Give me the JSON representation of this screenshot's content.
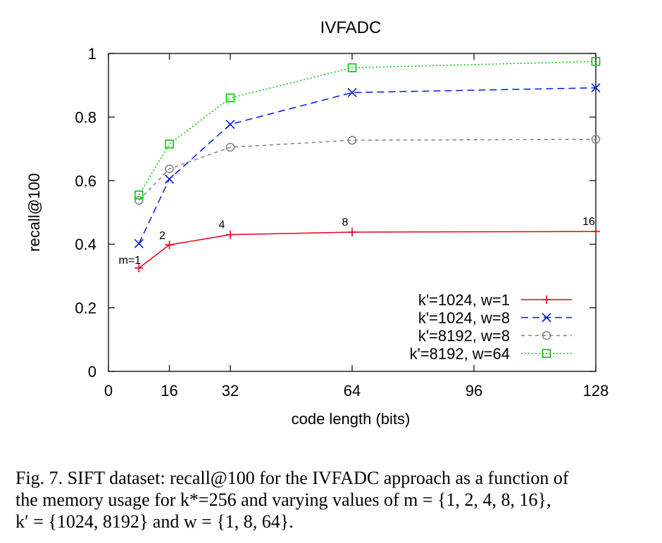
{
  "chart_data": {
    "type": "line",
    "title": "IVFADC",
    "xlabel": "code length (bits)",
    "ylabel": "recall@100",
    "xlim": [
      0,
      128
    ],
    "ylim": [
      0,
      1
    ],
    "xticks": [
      0,
      16,
      32,
      64,
      96,
      128
    ],
    "yticks": [
      0,
      0.2,
      0.4,
      0.6,
      0.8,
      1
    ],
    "ytick_labels": [
      "0",
      "0.2",
      "0.4",
      "0.6",
      "0.8",
      "1"
    ],
    "grid": false,
    "legend_position": "bottom-right",
    "series": [
      {
        "name": "k'=1024, w=1",
        "color": "#e8001c",
        "marker": "plus",
        "dash": "solid",
        "x": [
          8,
          16,
          32,
          64,
          128
        ],
        "y": [
          0.325,
          0.398,
          0.43,
          0.438,
          0.44
        ]
      },
      {
        "name": "k'=1024, w=8",
        "color": "#0019e8",
        "marker": "x",
        "dash": "dashed",
        "x": [
          8,
          16,
          32,
          64,
          128
        ],
        "y": [
          0.402,
          0.605,
          0.777,
          0.877,
          0.892
        ]
      },
      {
        "name": "k'=8192, w=8",
        "color": "#808080",
        "marker": "circle",
        "dash": "dashed-fine",
        "x": [
          8,
          16,
          32,
          64,
          128
        ],
        "y": [
          0.538,
          0.637,
          0.705,
          0.727,
          0.73
        ]
      },
      {
        "name": "k'=8192, w=64",
        "color": "#00c800",
        "marker": "square",
        "dash": "dotted",
        "x": [
          8,
          16,
          32,
          64,
          128
        ],
        "y": [
          0.555,
          0.715,
          0.86,
          0.955,
          0.975
        ]
      }
    ],
    "annotations": [
      {
        "text": "m=1",
        "x": 8,
        "y": 0.325
      },
      {
        "text": "2",
        "x": 16,
        "y": 0.398
      },
      {
        "text": "4",
        "x": 32,
        "y": 0.43
      },
      {
        "text": "8",
        "x": 64,
        "y": 0.438
      },
      {
        "text": "16",
        "x": 128,
        "y": 0.44
      }
    ]
  },
  "caption": {
    "line1": "Fig. 7.   SIFT dataset: recall@100 for the IVFADC approach as a function of",
    "line2": "the memory usage for k*=256 and varying values of m = {1, 2, 4, 8, 16},",
    "line3": "k′ = {1024, 8192} and w = {1, 8, 64}."
  }
}
